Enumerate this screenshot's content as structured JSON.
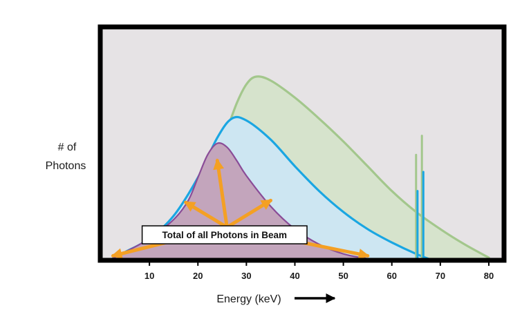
{
  "chart_data": {
    "type": "area",
    "title": "",
    "xlabel": "Energy (keV)",
    "ylabel_lines": [
      "# of",
      "Photons"
    ],
    "xlim": [
      0,
      83
    ],
    "ylim": [
      0,
      1
    ],
    "xticks": [
      10,
      20,
      30,
      40,
      50,
      60,
      70,
      80
    ],
    "grid": false,
    "background": "#e6e3e5",
    "series": [
      {
        "name": "green",
        "stroke": "#a3c78c",
        "fill": "#d6e3cc",
        "x": [
          5,
          10,
          15,
          20,
          25,
          28,
          30,
          32,
          35,
          40,
          45,
          50,
          55,
          60,
          65,
          70,
          75,
          80
        ],
        "y": [
          0.0,
          0.08,
          0.19,
          0.35,
          0.62,
          0.82,
          0.92,
          0.96,
          0.94,
          0.85,
          0.74,
          0.62,
          0.49,
          0.36,
          0.25,
          0.16,
          0.08,
          0.01
        ],
        "spikes": [
          {
            "x": 65.0,
            "top": 0.55
          },
          {
            "x": 66.2,
            "top": 0.65
          }
        ]
      },
      {
        "name": "blue",
        "stroke": "#1aa6e2",
        "fill": "#cde6f2",
        "x": [
          2,
          5,
          10,
          15,
          20,
          24,
          27,
          30,
          35,
          40,
          45,
          50,
          55,
          60,
          65,
          68
        ],
        "y": [
          0.0,
          0.04,
          0.11,
          0.23,
          0.43,
          0.64,
          0.74,
          0.73,
          0.63,
          0.49,
          0.36,
          0.25,
          0.16,
          0.09,
          0.03,
          0.0
        ],
        "spikes": [
          {
            "x": 65.3,
            "top": 0.36
          },
          {
            "x": 66.5,
            "top": 0.46
          }
        ]
      },
      {
        "name": "purple",
        "stroke": "#8a4c97",
        "fill": "#c3a5bc",
        "x": [
          2,
          5,
          10,
          15,
          18,
          20,
          22,
          24,
          26,
          28,
          30,
          35,
          40,
          45,
          50,
          55,
          58
        ],
        "y": [
          0.0,
          0.04,
          0.11,
          0.21,
          0.31,
          0.43,
          0.55,
          0.61,
          0.59,
          0.52,
          0.44,
          0.28,
          0.16,
          0.08,
          0.03,
          0.005,
          0.0
        ]
      }
    ],
    "annotation": {
      "text": "Total of all Photons in Beam",
      "color": "#f4a024"
    }
  }
}
